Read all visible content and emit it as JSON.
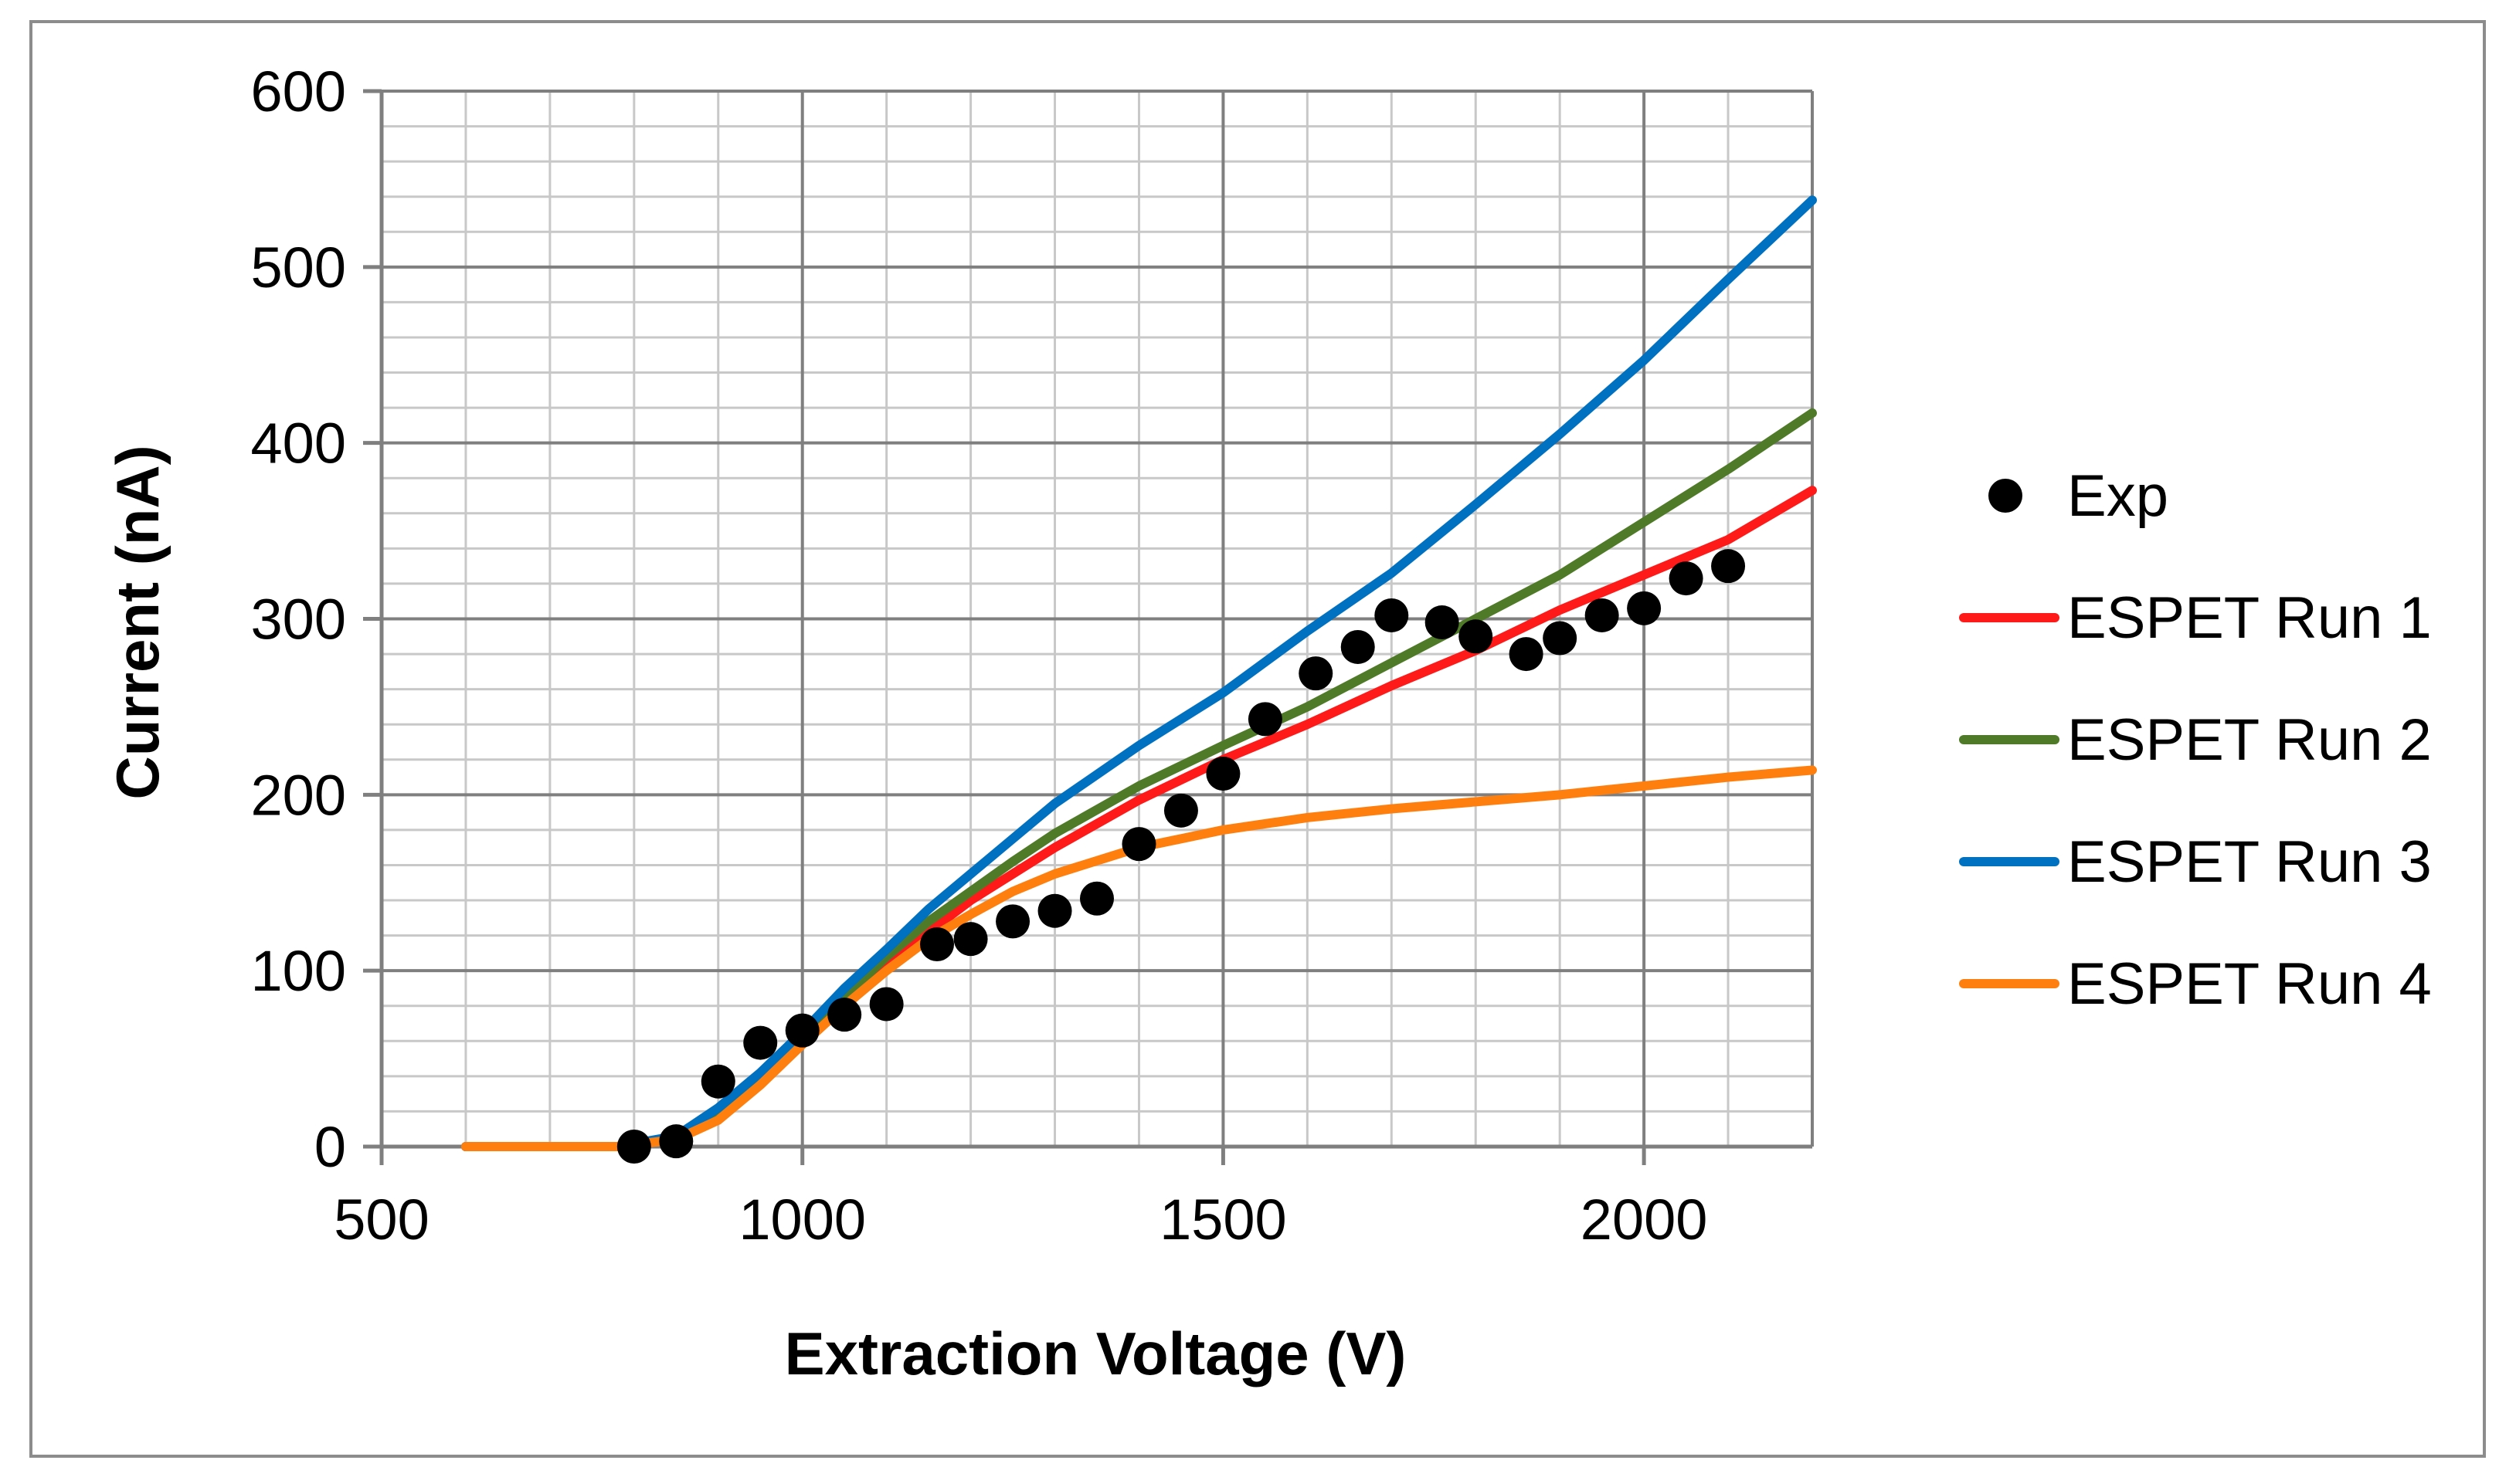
{
  "chart_data": {
    "type": "line",
    "title": "",
    "xlabel": "Extraction Voltage (V)",
    "ylabel": "Current (nA)",
    "xlim": [
      500,
      2200
    ],
    "ylim": [
      0,
      600
    ],
    "x_ticks": [
      500,
      1000,
      1500,
      2000
    ],
    "y_ticks": [
      0,
      100,
      200,
      300,
      400,
      500,
      600
    ],
    "x_minor_step": 100,
    "y_minor_step": 20,
    "grid": true,
    "legend_position": "right",
    "series": [
      {
        "name": "Exp",
        "kind": "scatter",
        "color": "#000000",
        "x": [
          800,
          850,
          900,
          950,
          1000,
          1050,
          1100,
          1160,
          1200,
          1250,
          1300,
          1350,
          1400,
          1450,
          1500,
          1550,
          1610,
          1660,
          1700,
          1760,
          1800,
          1860,
          1900,
          1950,
          2000,
          2050,
          2100
        ],
        "y": [
          0,
          3,
          37,
          59,
          66,
          75,
          81,
          115,
          118,
          128,
          134,
          141,
          172,
          191,
          212,
          243,
          269,
          284,
          302,
          298,
          290,
          280,
          289,
          302,
          306,
          323,
          330
        ]
      },
      {
        "name": "ESPET Run 1",
        "kind": "line",
        "color": "#ff1a1a",
        "x": [
          600,
          780,
          850,
          900,
          950,
          1000,
          1050,
          1100,
          1150,
          1200,
          1250,
          1300,
          1400,
          1500,
          1600,
          1700,
          1800,
          1900,
          2000,
          2100,
          2200
        ],
        "y": [
          0,
          0,
          5,
          20,
          40,
          62,
          82,
          102,
          122,
          140,
          155,
          170,
          197,
          220,
          240,
          262,
          282,
          305,
          325,
          345,
          373
        ]
      },
      {
        "name": "ESPET Run 2",
        "kind": "line",
        "color": "#4f7a28",
        "x": [
          600,
          780,
          850,
          900,
          950,
          1000,
          1050,
          1100,
          1150,
          1200,
          1250,
          1300,
          1400,
          1500,
          1600,
          1700,
          1800,
          1900,
          2000,
          2100,
          2200
        ],
        "y": [
          0,
          0,
          5,
          20,
          40,
          62,
          85,
          108,
          128,
          145,
          162,
          178,
          205,
          228,
          250,
          275,
          300,
          325,
          355,
          385,
          417
        ]
      },
      {
        "name": "ESPET Run 3",
        "kind": "line",
        "color": "#0070c0",
        "x": [
          600,
          780,
          850,
          900,
          950,
          1000,
          1050,
          1100,
          1150,
          1200,
          1250,
          1300,
          1400,
          1500,
          1600,
          1700,
          1800,
          1900,
          2000,
          2100,
          2200
        ],
        "y": [
          0,
          0,
          6,
          22,
          42,
          65,
          90,
          112,
          135,
          155,
          175,
          195,
          228,
          258,
          293,
          326,
          365,
          405,
          447,
          493,
          538
        ]
      },
      {
        "name": "ESPET Run 4",
        "kind": "line",
        "color": "#ff7f0e",
        "x": [
          600,
          780,
          850,
          900,
          950,
          1000,
          1050,
          1100,
          1150,
          1200,
          1250,
          1300,
          1400,
          1500,
          1600,
          1700,
          1800,
          1900,
          2000,
          2100,
          2200
        ],
        "y": [
          0,
          0,
          4,
          15,
          35,
          58,
          80,
          100,
          118,
          132,
          145,
          155,
          170,
          180,
          187,
          192,
          196,
          200,
          205,
          210,
          214
        ]
      }
    ]
  }
}
